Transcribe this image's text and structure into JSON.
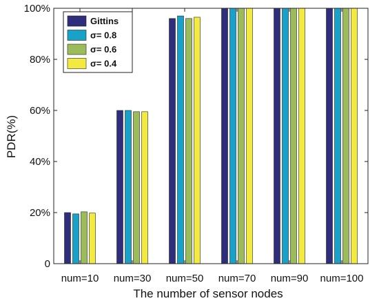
{
  "chart_data": {
    "type": "bar",
    "categories": [
      "num=10",
      "num=30",
      "num=50",
      "num=70",
      "num=90",
      "num=100"
    ],
    "series": [
      {
        "name": "Gittins",
        "values": [
          20,
          60,
          96,
          100,
          100,
          100
        ],
        "color": "#2e2e7a"
      },
      {
        "name": "σ= 0.8",
        "values": [
          19.5,
          60,
          97,
          100,
          100,
          100
        ],
        "color": "#1aa1c8"
      },
      {
        "name": "σ= 0.6",
        "values": [
          20.3,
          59.5,
          96,
          100,
          100,
          100
        ],
        "color": "#9cbb5a"
      },
      {
        "name": "σ= 0.4",
        "values": [
          19.8,
          59.5,
          96.5,
          100,
          100,
          100
        ],
        "color": "#f2ea40"
      }
    ],
    "title": "",
    "xlabel": "The number of sensor nodes",
    "ylabel": "PDR(%)",
    "ylim": [
      0,
      100
    ],
    "yticks": [
      0,
      20,
      40,
      60,
      80,
      100
    ],
    "ytick_labels": [
      "0",
      "20%",
      "40%",
      "60%",
      "80%",
      "100%"
    ],
    "grid": false,
    "legend_position": "top-left"
  }
}
